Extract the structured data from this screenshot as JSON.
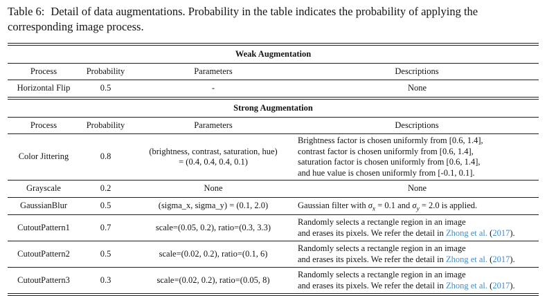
{
  "caption": {
    "label": "Table 6:",
    "body": "Detail of data augmentations. Probability in the table indicates the probability of applying the corresponding image process."
  },
  "columns": {
    "process": "Process",
    "probability": "Probability",
    "parameters": "Parameters",
    "descriptions": "Descriptions"
  },
  "weak": {
    "title": "Weak Augmentation",
    "rows": [
      {
        "process": "Horizontal Flip",
        "probability": "0.5",
        "parameters": "-",
        "description": "None"
      }
    ]
  },
  "strong": {
    "title": "Strong Augmentation",
    "rows": [
      {
        "process": "Color Jittering",
        "probability": "0.8",
        "parameters_line1": "(brightness, contrast, saturation, hue)",
        "parameters_line2": "= (0.4, 0.4, 0.4, 0.1)",
        "description_lines": [
          "Brightness factor is chosen uniformly from [0.6, 1.4],",
          "contrast factor is chosen uniformly from [0.6, 1.4],",
          "saturation factor is chosen uniformly from [0.6, 1.4],",
          "and hue value is chosen uniformly from [-0.1, 0.1]."
        ]
      },
      {
        "process": "Grayscale",
        "probability": "0.2",
        "parameters": "None",
        "description": "None"
      },
      {
        "process": "GaussianBlur",
        "probability": "0.5",
        "parameters": "(sigma_x, sigma_y) = (0.1, 2.0)",
        "description_math": {
          "prefix": "Gaussian filter with ",
          "sigma1": "σ",
          "sub_x": "x",
          "mid": " = 0.1 and ",
          "sigma2": "σ",
          "sub_y": "y",
          "suffix": " = 2.0 is applied."
        }
      },
      {
        "process": "CutoutPattern1",
        "probability": "0.7",
        "parameters": "scale=(0.05, 0.2), ratio=(0.3, 3.3)",
        "description": {
          "line1": "Randomly selects a rectangle region in an image",
          "line2_prefix": "and erases its pixels. We refer the detail in ",
          "citation_name": "Zhong et al.",
          "paren_open": " (",
          "citation_year": "2017",
          "paren_close": ")."
        }
      },
      {
        "process": "CutoutPattern2",
        "probability": "0.5",
        "parameters": "scale=(0.02, 0.2), ratio=(0.1, 6)",
        "description": {
          "line1": "Randomly selects a rectangle region in an image",
          "line2_prefix": "and erases its pixels. We refer the detail in ",
          "citation_name": "Zhong et al.",
          "paren_open": " (",
          "citation_year": "2017",
          "paren_close": ")."
        }
      },
      {
        "process": "CutoutPattern3",
        "probability": "0.3",
        "parameters": "scale=(0.02, 0.2), ratio=(0.05, 8)",
        "description": {
          "line1": "Randomly selects a rectangle region in an image",
          "line2_prefix": "and erases its pixels. We refer the detail in ",
          "citation_name": "Zhong et al.",
          "paren_open": " (",
          "citation_year": "2017",
          "paren_close": ")."
        }
      }
    ]
  },
  "colors": {
    "citation_link": "#3f8cd5",
    "text": "#131313",
    "rule": "#1b1b1b",
    "background": "#ffffff"
  }
}
